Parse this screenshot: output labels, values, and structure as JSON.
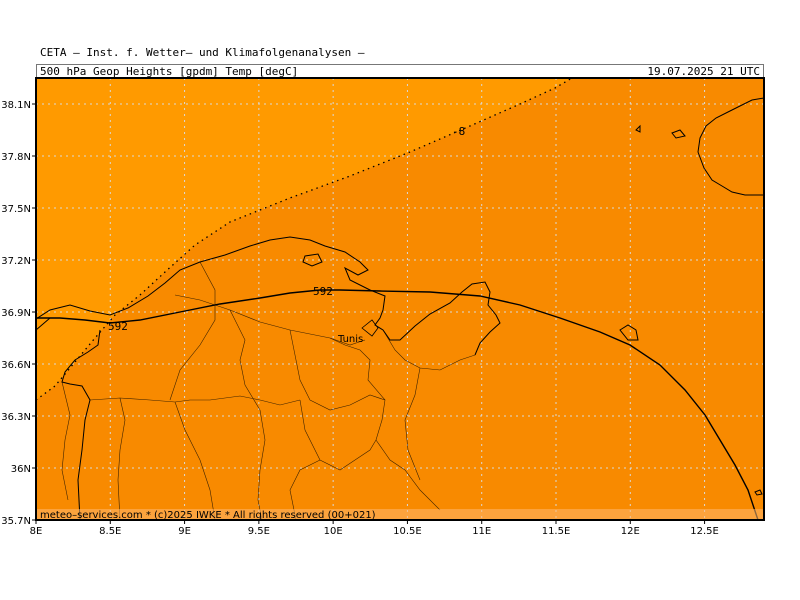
{
  "header": {
    "org": "CETA – Inst. f. Wetter– und Klimafolgenanalysen –",
    "variable": "500_hPa_Geop_Heights_[gpdm]_Temp_[degC]",
    "valid_time": "19.07.2025 21 UTC"
  },
  "map": {
    "lon_range": [
      8.0,
      12.9
    ],
    "lat_range": [
      35.7,
      38.25
    ],
    "fill_colors": {
      "warm": "#ff9a00",
      "warmer": "#f88a00"
    },
    "lat_ticks": [
      {
        "value": 35.7,
        "label": "35.7N"
      },
      {
        "value": 36.0,
        "label": "36N"
      },
      {
        "value": 36.3,
        "label": "36.3N"
      },
      {
        "value": 36.6,
        "label": "36.6N"
      },
      {
        "value": 36.9,
        "label": "36.9N"
      },
      {
        "value": 37.2,
        "label": "37.2N"
      },
      {
        "value": 37.5,
        "label": "37.5N"
      },
      {
        "value": 37.8,
        "label": "37.8N"
      },
      {
        "value": 38.1,
        "label": "38.1N"
      }
    ],
    "lon_ticks": [
      {
        "value": 8.0,
        "label": "8E"
      },
      {
        "value": 8.5,
        "label": "8.5E"
      },
      {
        "value": 9.0,
        "label": "9E"
      },
      {
        "value": 9.5,
        "label": "9.5E"
      },
      {
        "value": 10.0,
        "label": "10E"
      },
      {
        "value": 10.5,
        "label": "10.5E"
      },
      {
        "value": 11.0,
        "label": "11E"
      },
      {
        "value": 11.5,
        "label": "11.5E"
      },
      {
        "value": 12.0,
        "label": "12E"
      },
      {
        "value": 12.5,
        "label": "12.5E"
      }
    ],
    "contour_labels": {
      "geopotential_a": "592",
      "geopotential_b": "592",
      "temperature": "-8"
    },
    "city": "Tunis",
    "footer": "meteo–services.com * (c)2025 IWKE * All rights reserved (00+021)"
  }
}
